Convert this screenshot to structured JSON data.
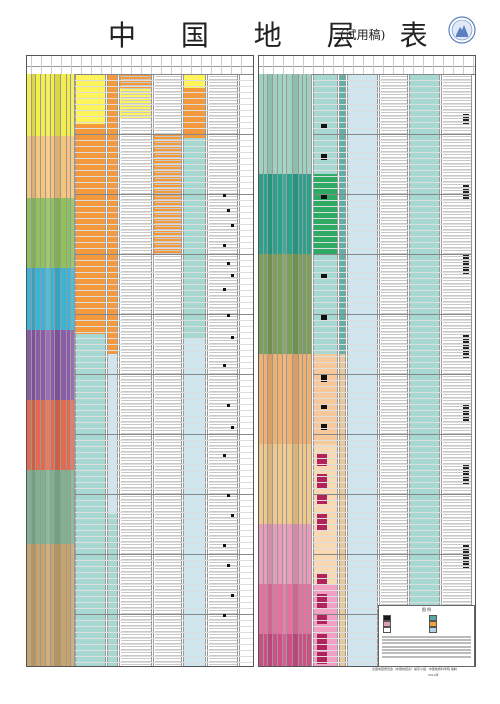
{
  "title": "中 国 地 层 表",
  "subtitle": "(试用稿)",
  "logo": {
    "icon": "survey-emblem-icon",
    "colors": [
      "#5b7fc0",
      "#ffffff"
    ]
  },
  "footer": {
    "publisher_note": "全国地层委员会（中国地层表）编写小组 · 中国地质科学院 编制",
    "date": "2014年"
  },
  "legend": {
    "title": "图 例",
    "items": [
      {
        "swatch_color": "#1a1a1a",
        "label_icon": "solid-bar-icon"
      },
      {
        "swatch_color": "#5aa6a0",
        "label_icon": "teal-bar-icon"
      },
      {
        "swatch_color": "#e0a0b8",
        "label_icon": "pink-bar-icon"
      },
      {
        "swatch_color": "#f2a23c",
        "label_icon": "orange-bar-icon"
      },
      {
        "swatch_color": "#ffffff",
        "label_icon": "blank-bar-icon"
      },
      {
        "swatch_color": "#b8d3e6",
        "label_icon": "blue-bar-icon"
      }
    ]
  },
  "era_colors": {
    "cenozoic_neogene": "#f4ee4a",
    "paleogene": "#f6c47a",
    "cretaceous": "#8fc25a",
    "jurassic": "#3ab4d6",
    "triassic": "#8b5aa8",
    "permian": "#e46a4e",
    "carboniferous": "#7fb28e",
    "devonian": "#c9a46a",
    "silurian": "#9ed1c0",
    "ordovician": "#2aa38e",
    "cambrian": "#7ba05a",
    "ediacaran": "#f0b070",
    "cryogenian": "#f0c88a",
    "tonian": "#e89cb8",
    "mesoproterozoic": "#e870a0",
    "paleoproterozoic": "#d04e86",
    "archean": "#e2009a"
  },
  "facies_colors": {
    "orange": "#f49a3c",
    "teal": "#5fb0a8",
    "pale_teal": "#a8d8d2",
    "green": "#2faa64",
    "yellow": "#fff45a",
    "magenta": "#b0245e",
    "light_blue": "#cfe6ef"
  }
}
